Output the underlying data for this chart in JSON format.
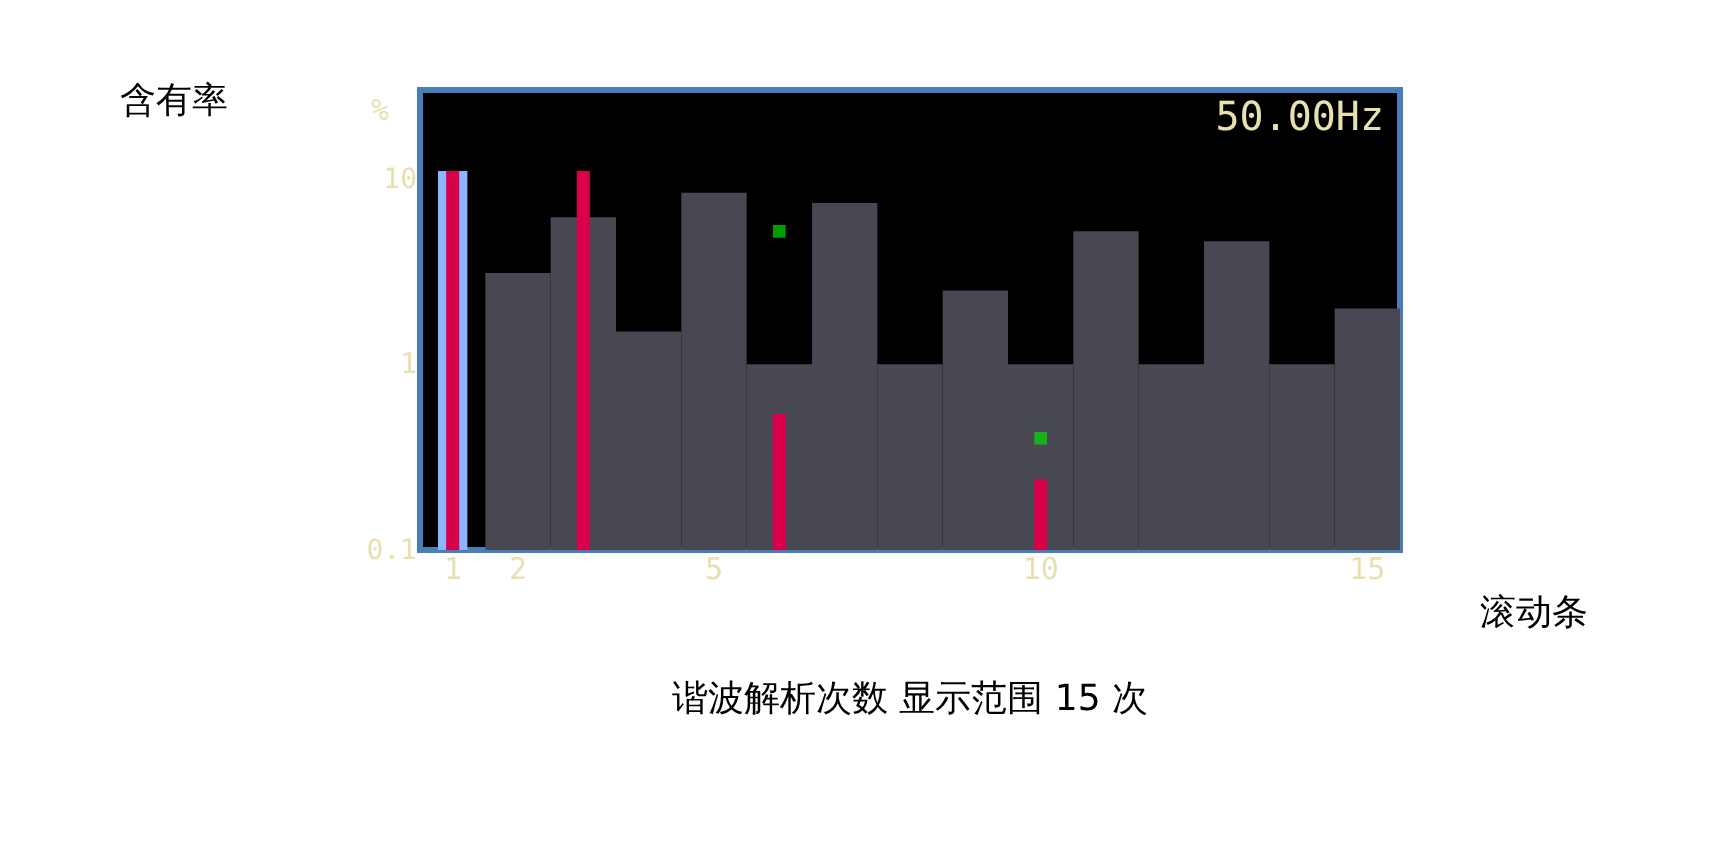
{
  "chart_data": {
    "type": "bar",
    "ylabel": "%",
    "categories": [
      "1",
      "2",
      null,
      null,
      "5",
      null,
      null,
      null,
      null,
      "10",
      null,
      null,
      null,
      null,
      "15"
    ],
    "series": [
      {
        "color": "#484852",
        "values": [
          null,
          3.1,
          6.2,
          1.5,
          8.4,
          1.0,
          7.4,
          1.0,
          2.5,
          1.0,
          5.2,
          1.0,
          4.6,
          1.0,
          2.0
        ]
      },
      {
        "color": "#8fb4ff",
        "values": [
          11,
          null,
          null,
          null,
          null,
          null,
          null,
          null,
          null,
          null,
          null,
          null,
          null,
          null,
          null
        ]
      },
      {
        "color": "#d8004a",
        "values": [
          11,
          null,
          11,
          null,
          null,
          0.54,
          null,
          null,
          null,
          0.24,
          null,
          null,
          null,
          null,
          null
        ]
      },
      {
        "type": "scatter",
        "color": "#00e000",
        "marker": "square",
        "values": [
          null,
          null,
          null,
          null,
          null,
          5.2,
          null,
          null,
          null,
          0.4,
          null,
          null,
          null,
          null,
          null
        ]
      }
    ],
    "log": "y",
    "ylim": [
      0.1,
      30
    ],
    "yticks": [
      0.1,
      1,
      10
    ],
    "grid": false,
    "annotations": [
      "50.00Hz",
      "含有率",
      "滚动条",
      "谐波解析次数 显示范围 15 次"
    ]
  }
}
